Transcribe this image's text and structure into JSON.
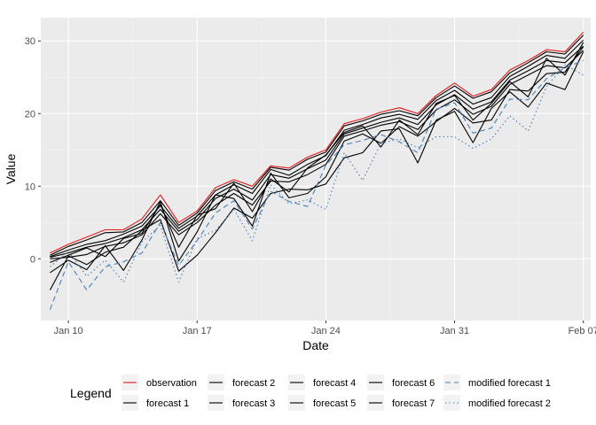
{
  "chart_data": {
    "type": "line",
    "xlabel": "Date",
    "ylabel": "Value",
    "x_start": "Jan 09",
    "x": [
      "Jan 09",
      "Jan 10",
      "Jan 11",
      "Jan 12",
      "Jan 13",
      "Jan 14",
      "Jan 15",
      "Jan 16",
      "Jan 17",
      "Jan 18",
      "Jan 19",
      "Jan 20",
      "Jan 21",
      "Jan 22",
      "Jan 23",
      "Jan 24",
      "Jan 25",
      "Jan 26",
      "Jan 27",
      "Jan 28",
      "Jan 29",
      "Jan 30",
      "Jan 31",
      "Feb 01",
      "Feb 02",
      "Feb 03",
      "Feb 04",
      "Feb 05",
      "Feb 06",
      "Feb 07"
    ],
    "x_ticks": [
      {
        "label": "Jan 10",
        "day": 1
      },
      {
        "label": "Jan 17",
        "day": 8
      },
      {
        "label": "Jan 24",
        "day": 15
      },
      {
        "label": "Jan 31",
        "day": 22
      },
      {
        "label": "Feb 07",
        "day": 29
      }
    ],
    "y_ticks": [
      0,
      10,
      20,
      30
    ],
    "xlim": [
      -0.5,
      29.4
    ],
    "ylim": [
      -8.5,
      33.2
    ],
    "grid": true,
    "legend": {
      "title": "Legend",
      "position": "bottom"
    },
    "series": [
      {
        "name": "observation",
        "color": "#e41a1c",
        "dash": "solid",
        "values": [
          0.8,
          2.0,
          3.0,
          4.0,
          4.0,
          5.5,
          8.8,
          5.0,
          6.6,
          9.8,
          10.9,
          10.0,
          12.8,
          12.5,
          14.0,
          15.0,
          18.6,
          19.3,
          20.2,
          20.8,
          20.0,
          22.5,
          24.2,
          22.4,
          23.3,
          26.0,
          27.3,
          28.8,
          28.5,
          31.2
        ]
      },
      {
        "name": "forecast 1",
        "color": "#000000",
        "dash": "solid",
        "values": [
          0.5,
          1.7,
          2.6,
          3.6,
          3.7,
          5.0,
          8.0,
          4.6,
          6.3,
          9.4,
          10.6,
          9.6,
          12.6,
          12.2,
          13.7,
          14.7,
          18.3,
          19.0,
          19.9,
          20.4,
          19.7,
          22.2,
          23.8,
          22.1,
          23.0,
          25.6,
          27.0,
          28.5,
          28.2,
          30.8
        ]
      },
      {
        "name": "forecast 2",
        "color": "#000000",
        "dash": "solid",
        "values": [
          0.3,
          1.2,
          2.0,
          2.5,
          3.4,
          4.5,
          7.3,
          4.2,
          5.9,
          8.8,
          10.2,
          9.0,
          12.3,
          11.5,
          13.0,
          14.2,
          17.7,
          18.5,
          19.4,
          19.9,
          19.2,
          21.8,
          23.2,
          21.3,
          22.2,
          25.1,
          26.5,
          28.0,
          27.6,
          30.1
        ]
      },
      {
        "name": "forecast 3",
        "color": "#000000",
        "dash": "solid",
        "values": [
          0.2,
          0.8,
          1.6,
          2.1,
          2.9,
          4.0,
          6.8,
          3.8,
          5.4,
          8.3,
          9.6,
          8.1,
          11.6,
          11.1,
          12.4,
          13.6,
          17.2,
          18.0,
          18.8,
          19.4,
          18.5,
          21.2,
          22.6,
          20.6,
          21.6,
          24.6,
          25.9,
          27.3,
          27.0,
          29.3
        ]
      },
      {
        "name": "forecast 4",
        "color": "#000000",
        "dash": "solid",
        "values": [
          0.0,
          0.2,
          0.6,
          1.7,
          2.2,
          3.3,
          6.2,
          3.3,
          5.0,
          7.4,
          9.0,
          7.4,
          10.7,
          10.6,
          11.6,
          13.0,
          16.9,
          17.6,
          18.4,
          18.9,
          17.8,
          20.5,
          21.9,
          19.9,
          21.0,
          24.0,
          25.3,
          26.6,
          26.3,
          28.7
        ]
      },
      {
        "name": "forecast 5",
        "color": "#000000",
        "dash": "solid",
        "values": [
          -0.5,
          0.5,
          1.5,
          0.3,
          2.8,
          3.5,
          7.5,
          1.6,
          6.0,
          6.9,
          10.4,
          6.5,
          11.0,
          9.2,
          12.5,
          14.3,
          17.4,
          18.3,
          15.4,
          19.1,
          17.1,
          21.4,
          22.5,
          19.1,
          21.4,
          24.4,
          22.3,
          27.6,
          25.3,
          29.8
        ]
      },
      {
        "name": "forecast 6",
        "color": "#000000",
        "dash": "solid",
        "values": [
          -1.9,
          -0.2,
          -1.5,
          1.8,
          -1.6,
          2.6,
          7.9,
          -0.3,
          3.7,
          8.8,
          8.3,
          4.5,
          11.8,
          8.4,
          9.0,
          11.3,
          16.2,
          17.2,
          15.9,
          18.2,
          16.9,
          18.9,
          20.7,
          18.7,
          19.1,
          23.3,
          23.1,
          25.5,
          25.7,
          29.2
        ]
      },
      {
        "name": "forecast 7",
        "color": "#000000",
        "dash": "solid",
        "values": [
          -4.3,
          0.4,
          -0.8,
          0.9,
          1.6,
          3.9,
          5.4,
          -1.7,
          0.5,
          3.6,
          7.0,
          5.6,
          9.0,
          9.6,
          9.5,
          10.3,
          13.9,
          14.6,
          17.6,
          17.9,
          13.2,
          19.1,
          20.3,
          16.0,
          20.7,
          23.0,
          20.9,
          24.2,
          23.3,
          28.5
        ]
      },
      {
        "name": "modified forecast 1",
        "color": "#4a7fb8",
        "dash": "6,4",
        "values": [
          -7.0,
          -0.4,
          -4.3,
          -1.1,
          -0.4,
          0.8,
          5.0,
          -0.9,
          2.5,
          6.3,
          8.0,
          4.1,
          9.3,
          7.9,
          7.2,
          12.9,
          15.7,
          16.3,
          17.1,
          16.1,
          14.6,
          20.6,
          21.5,
          17.3,
          18.0,
          22.0,
          21.9,
          24.8,
          26.3,
          27.3
        ]
      },
      {
        "name": "modified forecast 2",
        "color": "#4a7fb8",
        "dash": "1.5,3",
        "values": [
          -1.1,
          1.0,
          -2.4,
          -0.2,
          -3.2,
          2.3,
          4.6,
          -3.2,
          2.8,
          3.9,
          6.8,
          2.5,
          10.2,
          7.6,
          8.1,
          6.8,
          14.6,
          10.8,
          15.9,
          16.5,
          15.3,
          16.8,
          16.8,
          15.2,
          16.5,
          19.7,
          17.6,
          23.7,
          26.7,
          25.3
        ]
      }
    ]
  }
}
